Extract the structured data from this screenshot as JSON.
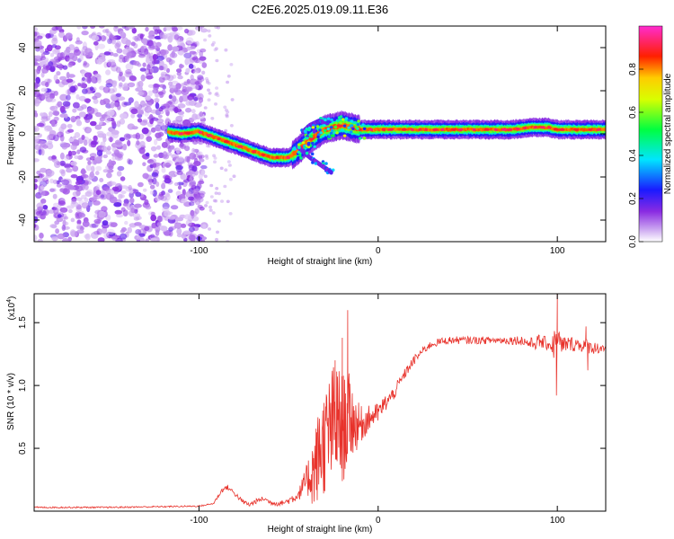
{
  "figure": {
    "title": "C2E6.2025.019.09.11.E36"
  },
  "chart_data": [
    {
      "type": "heatmap",
      "subtype": "spectrogram",
      "xlabel": "Height of straight line (km)",
      "ylabel": "Frequency (Hz)",
      "xlim": [
        -192,
        127
      ],
      "ylim": [
        -50,
        50
      ],
      "xticks": [
        -100,
        0,
        100
      ],
      "yticks": [
        -40,
        -20,
        0,
        20,
        40
      ],
      "colorbar": {
        "label": "Normalized spectral amplitude",
        "range": [
          0.0,
          1.0
        ],
        "ticks": [
          0.0,
          0.2,
          0.4,
          0.6,
          0.8
        ],
        "colormap": [
          "#ffffff",
          "#8a2be2",
          "#0000ff",
          "#00ffff",
          "#00ff00",
          "#ffff00",
          "#ff0000",
          "#ff00ff"
        ]
      },
      "noise_region": {
        "x_from": -192,
        "x_to": -97,
        "sparse_to": -80,
        "freq_from": -50,
        "freq_to": 50
      },
      "ridge": [
        {
          "x": -117,
          "freq": 1
        },
        {
          "x": -110,
          "freq": 0
        },
        {
          "x": -100,
          "freq": 1
        },
        {
          "x": -90,
          "freq": -2
        },
        {
          "x": -80,
          "freq": -5
        },
        {
          "x": -70,
          "freq": -8
        },
        {
          "x": -60,
          "freq": -11
        },
        {
          "x": -50,
          "freq": -11
        },
        {
          "x": -45,
          "freq": -8
        },
        {
          "x": -40,
          "freq": -4
        },
        {
          "x": -35,
          "freq": -1
        },
        {
          "x": -30,
          "freq": 2
        },
        {
          "x": -25,
          "freq": 3
        },
        {
          "x": -20,
          "freq": 4
        },
        {
          "x": -15,
          "freq": 3
        },
        {
          "x": -10,
          "freq": 2
        },
        {
          "x": 0,
          "freq": 2
        },
        {
          "x": 20,
          "freq": 2
        },
        {
          "x": 50,
          "freq": 2
        },
        {
          "x": 75,
          "freq": 2
        },
        {
          "x": 85,
          "freq": 3
        },
        {
          "x": 95,
          "freq": 3
        },
        {
          "x": 100,
          "freq": 2
        },
        {
          "x": 127,
          "freq": 2
        }
      ],
      "branches": [
        [
          {
            "x": -45,
            "freq": -6
          },
          {
            "x": -38,
            "freq": -11
          },
          {
            "x": -31,
            "freq": -15
          },
          {
            "x": -26,
            "freq": -18
          }
        ],
        [
          {
            "x": -42,
            "freq": 1
          },
          {
            "x": -38,
            "freq": 4
          },
          {
            "x": -33,
            "freq": 6
          },
          {
            "x": -28,
            "freq": 5
          }
        ]
      ]
    },
    {
      "type": "line",
      "xlabel": "Height of straight line (km)",
      "ylabel": "SNR (10 * v/v)",
      "multiplier_label": "(x10",
      "multiplier_exp": "4",
      "multiplier_close": ")",
      "xlim": [
        -192,
        127
      ],
      "ylim": [
        0,
        1.73
      ],
      "xticks": [
        -100,
        0,
        100
      ],
      "yticks": [
        0.5,
        1.0,
        1.5
      ],
      "ytick_labels": [
        "0.5",
        "1.0",
        "1.5"
      ],
      "color": "#e8322b",
      "series": [
        {
          "name": "SNR",
          "baseline_x": [
            -192,
            -150,
            -100,
            -92
          ],
          "baseline_y": [
            0.03,
            0.03,
            0.04,
            0.06
          ],
          "x": [
            -92,
            -87,
            -84,
            -80,
            -76,
            -72,
            -68,
            -64,
            -60,
            -56,
            -52,
            -48,
            -44,
            -40,
            -36,
            -32,
            -28,
            -24,
            -20,
            -16,
            -12,
            -8,
            -4,
            0,
            4,
            8,
            12,
            16,
            20,
            25,
            30,
            35,
            40,
            50,
            60,
            70,
            80,
            85,
            90,
            95,
            98,
            100,
            102,
            105,
            110,
            115,
            120,
            127
          ],
          "y": [
            0.06,
            0.17,
            0.19,
            0.14,
            0.08,
            0.05,
            0.08,
            0.1,
            0.07,
            0.06,
            0.07,
            0.1,
            0.14,
            0.25,
            0.32,
            0.5,
            0.6,
            0.72,
            0.65,
            0.75,
            0.68,
            0.7,
            0.75,
            0.78,
            0.86,
            0.92,
            1.02,
            1.12,
            1.2,
            1.28,
            1.33,
            1.35,
            1.36,
            1.36,
            1.36,
            1.36,
            1.36,
            1.33,
            1.35,
            1.33,
            1.32,
            1.36,
            1.3,
            1.33,
            1.33,
            1.32,
            1.3,
            1.3
          ],
          "noise_amp": [
            0.01,
            0.02,
            0.02,
            0.02,
            0.02,
            0.02,
            0.02,
            0.02,
            0.02,
            0.02,
            0.02,
            0.04,
            0.05,
            0.12,
            0.3,
            0.4,
            0.45,
            0.5,
            0.45,
            0.35,
            0.2,
            0.12,
            0.1,
            0.08,
            0.07,
            0.06,
            0.05,
            0.04,
            0.04,
            0.03,
            0.03,
            0.03,
            0.03,
            0.03,
            0.03,
            0.03,
            0.04,
            0.05,
            0.06,
            0.05,
            0.12,
            0.15,
            0.12,
            0.06,
            0.06,
            0.06,
            0.05,
            0.04
          ],
          "spikes": [
            {
              "x": -17,
              "y": 1.6
            },
            {
              "x": -20,
              "y": 1.38
            },
            {
              "x": -24,
              "y": 1.2
            },
            {
              "x": 100,
              "y": 1.73
            },
            {
              "x": 99.5,
              "y": 0.92
            },
            {
              "x": 116,
              "y": 1.47
            },
            {
              "x": 117,
              "y": 1.12
            }
          ]
        }
      ]
    }
  ]
}
